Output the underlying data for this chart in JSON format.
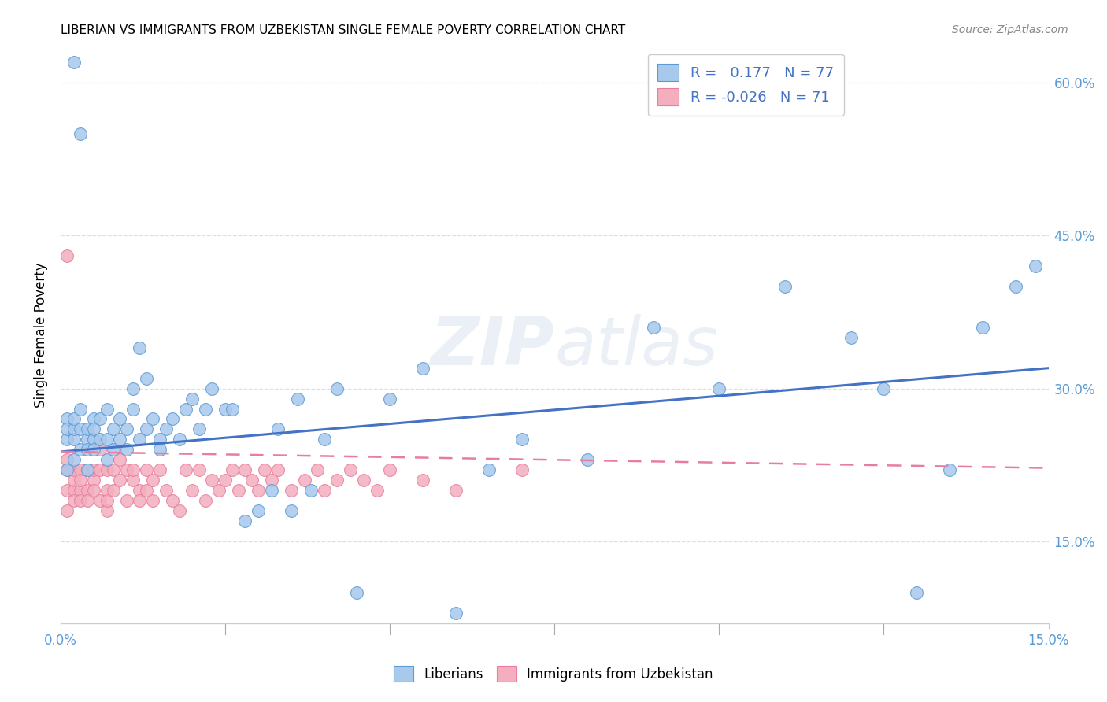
{
  "title": "LIBERIAN VS IMMIGRANTS FROM UZBEKISTAN SINGLE FEMALE POVERTY CORRELATION CHART",
  "source": "Source: ZipAtlas.com",
  "ylabel": "Single Female Poverty",
  "x_min": 0.0,
  "x_max": 0.15,
  "y_min": 0.07,
  "y_max": 0.635,
  "liberian_R": 0.177,
  "liberian_N": 77,
  "uzbekistan_R": -0.026,
  "uzbekistan_N": 71,
  "liberian_color": "#A8C8EC",
  "liberian_edge_color": "#5B9BD5",
  "uzbekistan_color": "#F4AEBE",
  "uzbekistan_edge_color": "#E87DA0",
  "liberian_line_color": "#4472C4",
  "uzbekistan_line_color": "#E87DA0",
  "watermark": "ZIPatlas",
  "legend_labels": [
    "Liberians",
    "Immigrants from Uzbekistan"
  ],
  "liberian_scatter_x": [
    0.001,
    0.001,
    0.001,
    0.001,
    0.002,
    0.002,
    0.002,
    0.002,
    0.003,
    0.003,
    0.003,
    0.004,
    0.004,
    0.004,
    0.004,
    0.005,
    0.005,
    0.005,
    0.005,
    0.006,
    0.006,
    0.007,
    0.007,
    0.007,
    0.008,
    0.008,
    0.009,
    0.009,
    0.01,
    0.01,
    0.011,
    0.011,
    0.012,
    0.012,
    0.013,
    0.013,
    0.014,
    0.015,
    0.015,
    0.016,
    0.017,
    0.018,
    0.019,
    0.02,
    0.021,
    0.022,
    0.023,
    0.025,
    0.026,
    0.028,
    0.03,
    0.032,
    0.033,
    0.035,
    0.036,
    0.038,
    0.04,
    0.042,
    0.045,
    0.05,
    0.055,
    0.06,
    0.065,
    0.07,
    0.08,
    0.09,
    0.1,
    0.11,
    0.12,
    0.125,
    0.13,
    0.135,
    0.14,
    0.145,
    0.148,
    0.002,
    0.003
  ],
  "liberian_scatter_y": [
    0.27,
    0.25,
    0.26,
    0.22,
    0.25,
    0.26,
    0.23,
    0.27,
    0.24,
    0.26,
    0.28,
    0.25,
    0.26,
    0.24,
    0.22,
    0.25,
    0.27,
    0.24,
    0.26,
    0.25,
    0.27,
    0.23,
    0.25,
    0.28,
    0.24,
    0.26,
    0.25,
    0.27,
    0.24,
    0.26,
    0.28,
    0.3,
    0.25,
    0.34,
    0.31,
    0.26,
    0.27,
    0.25,
    0.24,
    0.26,
    0.27,
    0.25,
    0.28,
    0.29,
    0.26,
    0.28,
    0.3,
    0.28,
    0.28,
    0.17,
    0.18,
    0.2,
    0.26,
    0.18,
    0.29,
    0.2,
    0.25,
    0.3,
    0.1,
    0.29,
    0.32,
    0.08,
    0.22,
    0.25,
    0.23,
    0.36,
    0.3,
    0.4,
    0.35,
    0.3,
    0.1,
    0.22,
    0.36,
    0.4,
    0.42,
    0.62,
    0.55
  ],
  "uzbekistan_scatter_x": [
    0.001,
    0.001,
    0.001,
    0.001,
    0.002,
    0.002,
    0.002,
    0.002,
    0.003,
    0.003,
    0.003,
    0.003,
    0.004,
    0.004,
    0.004,
    0.005,
    0.005,
    0.005,
    0.006,
    0.006,
    0.006,
    0.007,
    0.007,
    0.007,
    0.007,
    0.008,
    0.008,
    0.009,
    0.009,
    0.01,
    0.01,
    0.011,
    0.011,
    0.012,
    0.012,
    0.013,
    0.013,
    0.014,
    0.014,
    0.015,
    0.016,
    0.017,
    0.018,
    0.019,
    0.02,
    0.021,
    0.022,
    0.023,
    0.024,
    0.025,
    0.026,
    0.027,
    0.028,
    0.029,
    0.03,
    0.031,
    0.032,
    0.033,
    0.035,
    0.037,
    0.039,
    0.04,
    0.042,
    0.044,
    0.046,
    0.048,
    0.05,
    0.055,
    0.06,
    0.07,
    0.001
  ],
  "uzbekistan_scatter_y": [
    0.22,
    0.2,
    0.18,
    0.23,
    0.2,
    0.19,
    0.21,
    0.22,
    0.2,
    0.19,
    0.22,
    0.21,
    0.22,
    0.2,
    0.19,
    0.21,
    0.22,
    0.2,
    0.22,
    0.24,
    0.19,
    0.22,
    0.2,
    0.18,
    0.19,
    0.22,
    0.2,
    0.21,
    0.23,
    0.22,
    0.19,
    0.21,
    0.22,
    0.2,
    0.19,
    0.22,
    0.2,
    0.19,
    0.21,
    0.22,
    0.2,
    0.19,
    0.18,
    0.22,
    0.2,
    0.22,
    0.19,
    0.21,
    0.2,
    0.21,
    0.22,
    0.2,
    0.22,
    0.21,
    0.2,
    0.22,
    0.21,
    0.22,
    0.2,
    0.21,
    0.22,
    0.2,
    0.21,
    0.22,
    0.21,
    0.2,
    0.22,
    0.21,
    0.2,
    0.22,
    0.43
  ],
  "lib_line_x0": 0.0,
  "lib_line_y0": 0.238,
  "lib_line_x1": 0.15,
  "lib_line_y1": 0.32,
  "uzb_line_x0": 0.0,
  "uzb_line_y0": 0.238,
  "uzb_line_x1": 0.15,
  "uzb_line_y1": 0.222
}
